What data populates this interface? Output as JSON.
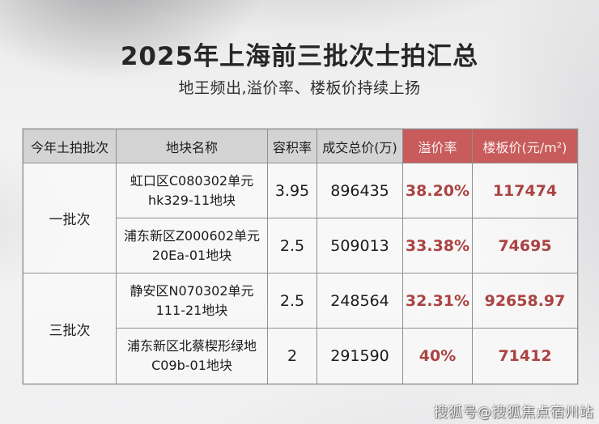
{
  "chart_data": {
    "type": "table",
    "title": "2025年上海前三批次士拍汇总",
    "subtitle": "地王频出,溢价率、楼板价持续上扬",
    "headers": [
      "今年土拍批次",
      "地块名称",
      "容积率",
      "成交总价(万)",
      "溢价率",
      "楼板价(元/m²)"
    ],
    "batch_labels": [
      "一批次",
      "三批次"
    ],
    "rows": [
      {
        "batch": "一批次",
        "name_line1": "虹口区C080302单元",
        "name_line2": "hk329-11地块",
        "plot_ratio": "3.95",
        "total_price": "896435",
        "premium_rate": "38.20%",
        "floor_price": "117474"
      },
      {
        "batch": "一批次",
        "name_line1": "浦东新区Z000602单元",
        "name_line2": "20Ea-01地块",
        "plot_ratio": "2.5",
        "total_price": "509013",
        "premium_rate": "33.38%",
        "floor_price": "74695"
      },
      {
        "batch": "三批次",
        "name_line1": "静安区N070302单元",
        "name_line2": "111-21地块",
        "plot_ratio": "2.5",
        "total_price": "248564",
        "premium_rate": "32.31%",
        "floor_price": "92658.97"
      },
      {
        "batch": "三批次",
        "name_line1": "浦东新区北蔡楔形绿地",
        "name_line2": "C09b-01地块",
        "plot_ratio": "2",
        "total_price": "291590",
        "premium_rate": "40%",
        "floor_price": "71412"
      }
    ],
    "layout": {
      "legend": "none",
      "grid": "table-borders"
    }
  },
  "colors": {
    "header_red": "#c85b5b",
    "value_red": "#aa4442",
    "header_gray": "#d1d1d1",
    "border_gray": "#8f8f8f"
  },
  "watermark": "搜狐号@搜狐焦点宿州站"
}
